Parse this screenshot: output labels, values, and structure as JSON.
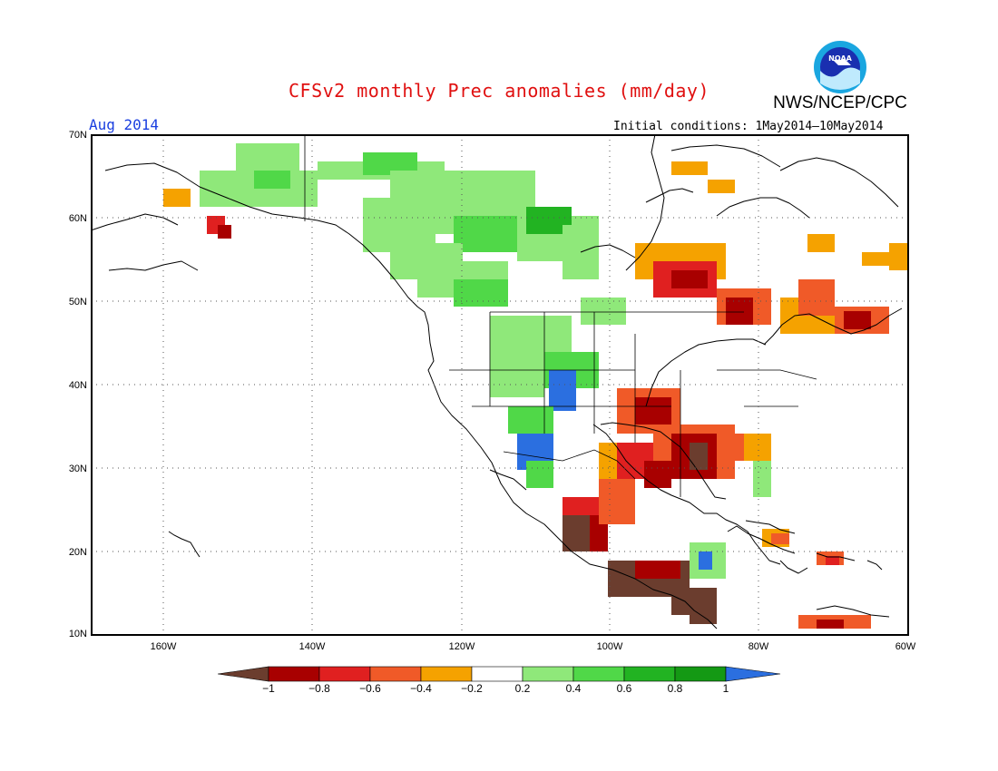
{
  "title": "CFSv2 monthly Prec anomalies (mm/day)",
  "organization": "NWS/NCEP/CPC",
  "logo_text": "NOAA",
  "valid_month": "Aug 2014",
  "initial_conditions": "Initial conditions: 1May2014—10May2014",
  "lat_labels": [
    "70N",
    "60N",
    "50N",
    "40N",
    "30N",
    "20N",
    "10N"
  ],
  "lon_labels": [
    "160W",
    "140W",
    "120W",
    "100W",
    "80W",
    "60W"
  ],
  "colorbar": {
    "labels": [
      "−1",
      "−0.8",
      "−0.6",
      "−0.4",
      "−0.2",
      "0.2",
      "0.4",
      "0.6",
      "0.8",
      "1"
    ],
    "colors": [
      "#6b3d2e",
      "#a80000",
      "#e02020",
      "#f05a28",
      "#f5a200",
      "#ffffff",
      "#8fe87a",
      "#50d848",
      "#22b322",
      "#149914",
      "#2b6fe0"
    ]
  },
  "colors": {
    "title": "#e01010",
    "valid_month": "#1a3fe0"
  }
}
